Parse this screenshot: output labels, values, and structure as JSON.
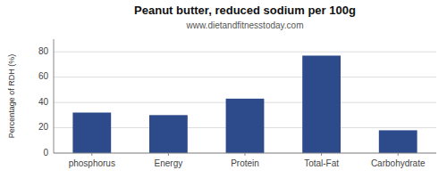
{
  "chart_data": {
    "type": "bar",
    "title": "Peanut butter, reduced sodium per 100g",
    "subtitle": "www.dietandfitnesstoday.com",
    "categories": [
      "phosphorus",
      "Energy",
      "Protein",
      "Total-Fat",
      "Carbohydrate"
    ],
    "values": [
      32,
      30,
      43,
      77,
      18
    ],
    "color": "#2d4a8a",
    "ylabel": "Percentage of RDH (%)",
    "ylim": [
      0,
      90
    ],
    "yticks": [
      0,
      20,
      40,
      60,
      80
    ],
    "grid": true
  }
}
